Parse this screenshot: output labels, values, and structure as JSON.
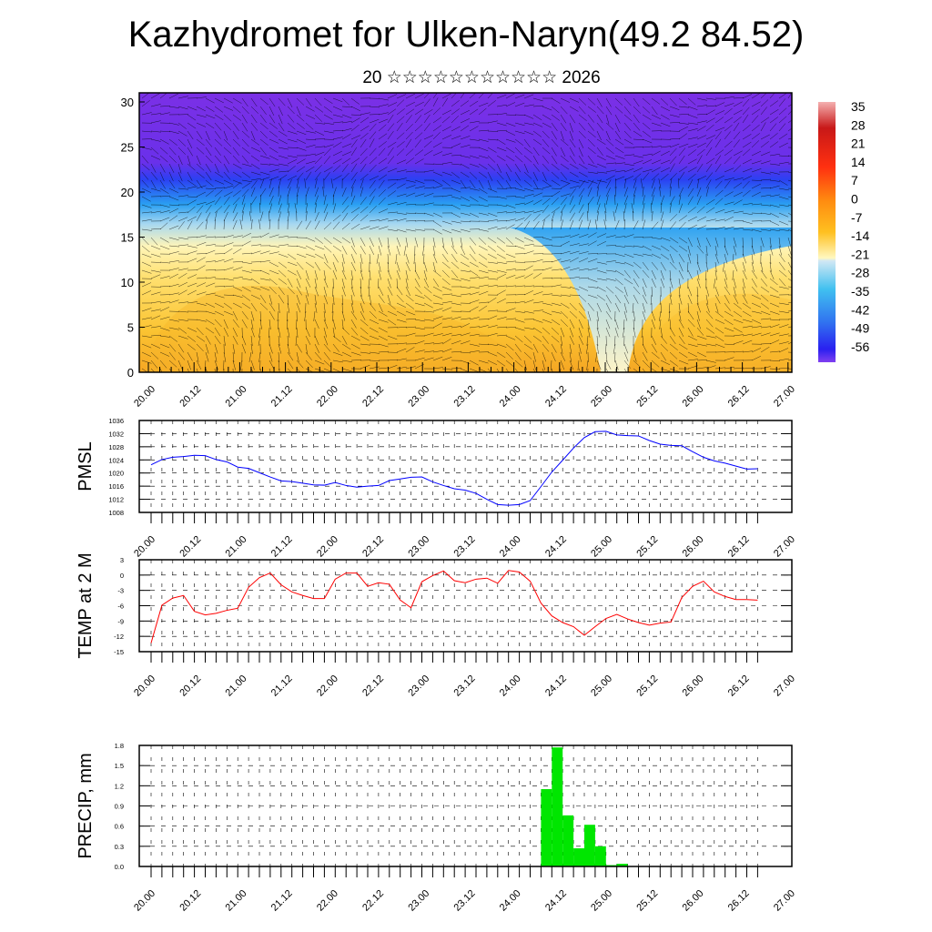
{
  "header": {
    "title": "Kazhydromet for Ulken-Naryn(49.2 84.52)",
    "subtitle": "20 ☆☆☆☆☆☆☆☆☆☆☆ 2026"
  },
  "chart_data": [
    {
      "type": "heatmap",
      "name": "vertical cross-section temperature with wind",
      "y_ticks": [
        "0",
        "5",
        "10",
        "15",
        "20",
        "25",
        "30"
      ],
      "ylim": [
        0,
        30
      ],
      "x_tick_labels": [
        "20.00",
        "20.12",
        "21.00",
        "21.12",
        "22.00",
        "22.12",
        "23.00",
        "23.12",
        "24.00",
        "24.12",
        "25.00",
        "25.12",
        "26.00",
        "26.12",
        "27.00"
      ],
      "colorbar_labels": [
        "35",
        "28",
        "21",
        "14",
        "7",
        "0",
        "-7",
        "-14",
        "-21",
        "-28",
        "-35",
        "-42",
        "-49",
        "-56"
      ],
      "colorbar_range": [
        -60,
        38
      ],
      "colors": {
        "top": "#7b2fe6",
        "cold": "#2a4cf5",
        "mid": "#27b6f0",
        "pale": "#d7ecf5",
        "warm": "#ffd23a",
        "hot": "#f5a623"
      }
    },
    {
      "type": "line",
      "ylabel": "PMSL",
      "ylim": [
        1008,
        1036
      ],
      "y_ticks": [
        "1036",
        "1032",
        "1028",
        "1024",
        "1020",
        "1016",
        "1012",
        "1008"
      ],
      "x_step_hours": 3,
      "color": "#0000ff",
      "values": [
        1022.5,
        1024.1,
        1024.8,
        1025.0,
        1025.4,
        1025.3,
        1024.1,
        1023.4,
        1021.8,
        1021.4,
        1020.1,
        1018.8,
        1017.6,
        1017.4,
        1016.9,
        1016.4,
        1016.3,
        1017.1,
        1016.2,
        1015.7,
        1016.0,
        1016.2,
        1017.7,
        1018.2,
        1018.7,
        1018.8,
        1017.3,
        1016.2,
        1015.2,
        1014.8,
        1013.8,
        1012.0,
        1010.4,
        1010.2,
        1010.4,
        1011.6,
        1015.9,
        1020.3,
        1023.9,
        1027.6,
        1030.8,
        1032.6,
        1032.7,
        1031.6,
        1031.4,
        1031.3,
        1029.9,
        1028.8,
        1028.4,
        1028.3,
        1026.5,
        1024.8,
        1023.7,
        1023.0,
        1022.1,
        1021.2,
        1021.3
      ]
    },
    {
      "type": "line",
      "ylabel": "TEMP at 2 M",
      "ylim": [
        -15,
        3
      ],
      "y_ticks": [
        "3",
        "0",
        "-3",
        "-6",
        "-9",
        "-12",
        "-15"
      ],
      "x_step_hours": 3,
      "color": "#ff0000",
      "values": [
        -13.3,
        -5.9,
        -4.5,
        -4.0,
        -7.1,
        -7.8,
        -7.5,
        -6.9,
        -6.5,
        -2.4,
        -0.5,
        0.4,
        -1.9,
        -3.3,
        -4.0,
        -4.6,
        -4.6,
        -0.8,
        0.4,
        0.4,
        -2.2,
        -1.5,
        -1.8,
        -4.9,
        -6.4,
        -1.3,
        -0.1,
        0.8,
        -1.1,
        -1.5,
        -0.8,
        -0.6,
        -1.6,
        0.9,
        0.6,
        -1.2,
        -5.5,
        -8.0,
        -9.3,
        -10.1,
        -11.8,
        -10.1,
        -8.5,
        -7.7,
        -8.6,
        -9.3,
        -9.8,
        -9.4,
        -9.2,
        -4.4,
        -2.2,
        -1.2,
        -3.3,
        -4.2,
        -4.8,
        -4.8,
        -4.9
      ]
    },
    {
      "type": "bar",
      "ylabel": "PRECIP, mm",
      "ylim": [
        0,
        1.8
      ],
      "y_ticks": [
        "1.8",
        "1.5",
        "1.2",
        "0.9",
        "0.6",
        "0.3",
        "0.0"
      ],
      "x_step_hours": 3,
      "color": "#00e600",
      "values": [
        0,
        0,
        0,
        0,
        0,
        0,
        0,
        0,
        0,
        0,
        0,
        0,
        0,
        0,
        0,
        0,
        0,
        0,
        0,
        0,
        0,
        0,
        0,
        0,
        0,
        0,
        0,
        0,
        0,
        0,
        0,
        0,
        0,
        0,
        0,
        0,
        1.15,
        1.77,
        0.76,
        0.27,
        0.62,
        0.3,
        0.02,
        0.04,
        0,
        0,
        0,
        0,
        0,
        0,
        0,
        0,
        0,
        0,
        0,
        0,
        0
      ]
    }
  ]
}
